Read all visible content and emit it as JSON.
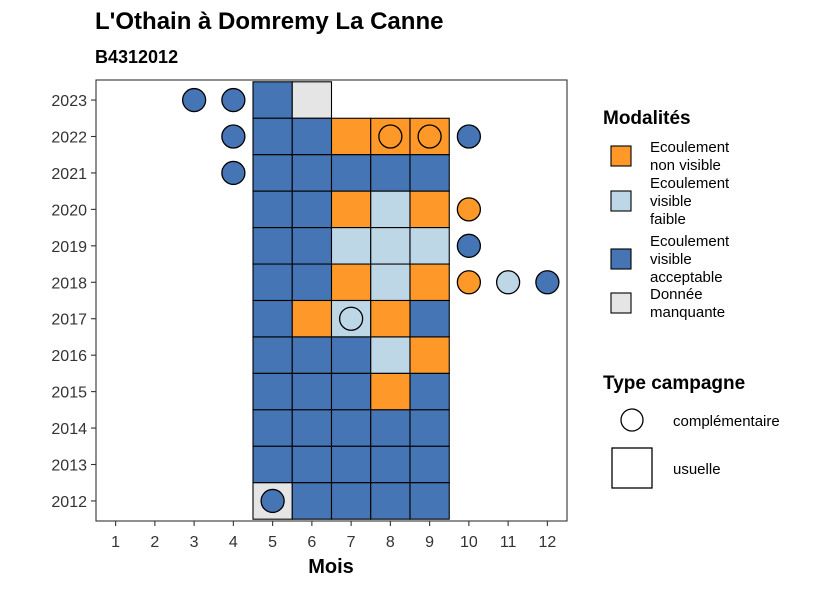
{
  "chart_data": {
    "type": "heatmap",
    "title": "L'Othain à Domremy La Canne",
    "subtitle": "B4312012",
    "xlabel": "Mois",
    "ylabel": "",
    "x_ticks": [
      "1",
      "2",
      "3",
      "4",
      "5",
      "6",
      "7",
      "8",
      "9",
      "10",
      "11",
      "12"
    ],
    "y_ticks": [
      "2012",
      "2013",
      "2014",
      "2015",
      "2016",
      "2017",
      "2018",
      "2019",
      "2020",
      "2021",
      "2022",
      "2023"
    ],
    "xlim": [
      0.5,
      12.5
    ],
    "ylim": [
      2011.45,
      2023.55
    ],
    "grid": false,
    "colors": {
      "ecoulement_non_visible": "#FE9929",
      "ecoulement_visible_faible": "#BDD7E7",
      "ecoulement_visible_acceptable": "#4575B4",
      "donnee_manquante": "#E5E5E5"
    },
    "cells": [
      {
        "year": 2023,
        "month": 5,
        "status": "ecoulement_visible_acceptable"
      },
      {
        "year": 2023,
        "month": 6,
        "status": "donnee_manquante"
      },
      {
        "year": 2022,
        "month": 5,
        "status": "ecoulement_visible_acceptable"
      },
      {
        "year": 2022,
        "month": 6,
        "status": "ecoulement_visible_acceptable"
      },
      {
        "year": 2022,
        "month": 7,
        "status": "ecoulement_non_visible"
      },
      {
        "year": 2022,
        "month": 8,
        "status": "ecoulement_non_visible"
      },
      {
        "year": 2022,
        "month": 9,
        "status": "ecoulement_non_visible"
      },
      {
        "year": 2021,
        "month": 5,
        "status": "ecoulement_visible_acceptable"
      },
      {
        "year": 2021,
        "month": 6,
        "status": "ecoulement_visible_acceptable"
      },
      {
        "year": 2021,
        "month": 7,
        "status": "ecoulement_visible_acceptable"
      },
      {
        "year": 2021,
        "month": 8,
        "status": "ecoulement_visible_acceptable"
      },
      {
        "year": 2021,
        "month": 9,
        "status": "ecoulement_visible_acceptable"
      },
      {
        "year": 2020,
        "month": 5,
        "status": "ecoulement_visible_acceptable"
      },
      {
        "year": 2020,
        "month": 6,
        "status": "ecoulement_visible_acceptable"
      },
      {
        "year": 2020,
        "month": 7,
        "status": "ecoulement_non_visible"
      },
      {
        "year": 2020,
        "month": 8,
        "status": "ecoulement_visible_faible"
      },
      {
        "year": 2020,
        "month": 9,
        "status": "ecoulement_non_visible"
      },
      {
        "year": 2019,
        "month": 5,
        "status": "ecoulement_visible_acceptable"
      },
      {
        "year": 2019,
        "month": 6,
        "status": "ecoulement_visible_acceptable"
      },
      {
        "year": 2019,
        "month": 7,
        "status": "ecoulement_visible_faible"
      },
      {
        "year": 2019,
        "month": 8,
        "status": "ecoulement_visible_faible"
      },
      {
        "year": 2019,
        "month": 9,
        "status": "ecoulement_visible_faible"
      },
      {
        "year": 2018,
        "month": 5,
        "status": "ecoulement_visible_acceptable"
      },
      {
        "year": 2018,
        "month": 6,
        "status": "ecoulement_visible_acceptable"
      },
      {
        "year": 2018,
        "month": 7,
        "status": "ecoulement_non_visible"
      },
      {
        "year": 2018,
        "month": 8,
        "status": "ecoulement_visible_faible"
      },
      {
        "year": 2018,
        "month": 9,
        "status": "ecoulement_non_visible"
      },
      {
        "year": 2017,
        "month": 5,
        "status": "ecoulement_visible_acceptable"
      },
      {
        "year": 2017,
        "month": 6,
        "status": "ecoulement_non_visible"
      },
      {
        "year": 2017,
        "month": 7,
        "status": "ecoulement_visible_faible"
      },
      {
        "year": 2017,
        "month": 8,
        "status": "ecoulement_non_visible"
      },
      {
        "year": 2017,
        "month": 9,
        "status": "ecoulement_visible_acceptable"
      },
      {
        "year": 2016,
        "month": 5,
        "status": "ecoulement_visible_acceptable"
      },
      {
        "year": 2016,
        "month": 6,
        "status": "ecoulement_visible_acceptable"
      },
      {
        "year": 2016,
        "month": 7,
        "status": "ecoulement_visible_acceptable"
      },
      {
        "year": 2016,
        "month": 8,
        "status": "ecoulement_visible_faible"
      },
      {
        "year": 2016,
        "month": 9,
        "status": "ecoulement_non_visible"
      },
      {
        "year": 2015,
        "month": 5,
        "status": "ecoulement_visible_acceptable"
      },
      {
        "year": 2015,
        "month": 6,
        "status": "ecoulement_visible_acceptable"
      },
      {
        "year": 2015,
        "month": 7,
        "status": "ecoulement_visible_acceptable"
      },
      {
        "year": 2015,
        "month": 8,
        "status": "ecoulement_non_visible"
      },
      {
        "year": 2015,
        "month": 9,
        "status": "ecoulement_visible_acceptable"
      },
      {
        "year": 2014,
        "month": 5,
        "status": "ecoulement_visible_acceptable"
      },
      {
        "year": 2014,
        "month": 6,
        "status": "ecoulement_visible_acceptable"
      },
      {
        "year": 2014,
        "month": 7,
        "status": "ecoulement_visible_acceptable"
      },
      {
        "year": 2014,
        "month": 8,
        "status": "ecoulement_visible_acceptable"
      },
      {
        "year": 2014,
        "month": 9,
        "status": "ecoulement_visible_acceptable"
      },
      {
        "year": 2013,
        "month": 5,
        "status": "ecoulement_visible_acceptable"
      },
      {
        "year": 2013,
        "month": 6,
        "status": "ecoulement_visible_acceptable"
      },
      {
        "year": 2013,
        "month": 7,
        "status": "ecoulement_visible_acceptable"
      },
      {
        "year": 2013,
        "month": 8,
        "status": "ecoulement_visible_acceptable"
      },
      {
        "year": 2013,
        "month": 9,
        "status": "ecoulement_visible_acceptable"
      },
      {
        "year": 2012,
        "month": 5,
        "status": "donnee_manquante"
      },
      {
        "year": 2012,
        "month": 6,
        "status": "ecoulement_visible_acceptable"
      },
      {
        "year": 2012,
        "month": 7,
        "status": "ecoulement_visible_acceptable"
      },
      {
        "year": 2012,
        "month": 8,
        "status": "ecoulement_visible_acceptable"
      },
      {
        "year": 2012,
        "month": 9,
        "status": "ecoulement_visible_acceptable"
      }
    ],
    "points": [
      {
        "year": 2023,
        "month": 3,
        "status": "ecoulement_visible_acceptable"
      },
      {
        "year": 2023,
        "month": 4,
        "status": "ecoulement_visible_acceptable"
      },
      {
        "year": 2022,
        "month": 4,
        "status": "ecoulement_visible_acceptable"
      },
      {
        "year": 2022,
        "month": 8,
        "status": "ecoulement_non_visible"
      },
      {
        "year": 2022,
        "month": 9,
        "status": "ecoulement_non_visible"
      },
      {
        "year": 2022,
        "month": 10,
        "status": "ecoulement_visible_acceptable"
      },
      {
        "year": 2021,
        "month": 4,
        "status": "ecoulement_visible_acceptable"
      },
      {
        "year": 2020,
        "month": 10,
        "status": "ecoulement_non_visible"
      },
      {
        "year": 2019,
        "month": 10,
        "status": "ecoulement_visible_acceptable"
      },
      {
        "year": 2018,
        "month": 10,
        "status": "ecoulement_non_visible"
      },
      {
        "year": 2018,
        "month": 11,
        "status": "ecoulement_visible_faible"
      },
      {
        "year": 2018,
        "month": 12,
        "status": "ecoulement_visible_acceptable"
      },
      {
        "year": 2017,
        "month": 7,
        "status": "ecoulement_visible_faible"
      },
      {
        "year": 2012,
        "month": 5,
        "status": "ecoulement_visible_acceptable"
      }
    ],
    "legend": {
      "modalites_title": "Modalités",
      "modalites": [
        {
          "key": "ecoulement_non_visible",
          "lines": [
            "Ecoulement",
            "non visible"
          ]
        },
        {
          "key": "ecoulement_visible_faible",
          "lines": [
            "Ecoulement",
            "visible",
            "faible"
          ]
        },
        {
          "key": "ecoulement_visible_acceptable",
          "lines": [
            "Ecoulement",
            "visible",
            "acceptable"
          ]
        },
        {
          "key": "donnee_manquante",
          "lines": [
            "Donnée",
            "manquante"
          ]
        }
      ],
      "campagne_title": "Type campagne",
      "campagne": [
        {
          "shape": "circle",
          "label": "complémentaire"
        },
        {
          "shape": "square",
          "label": "usuelle"
        }
      ],
      "position": "right"
    }
  }
}
